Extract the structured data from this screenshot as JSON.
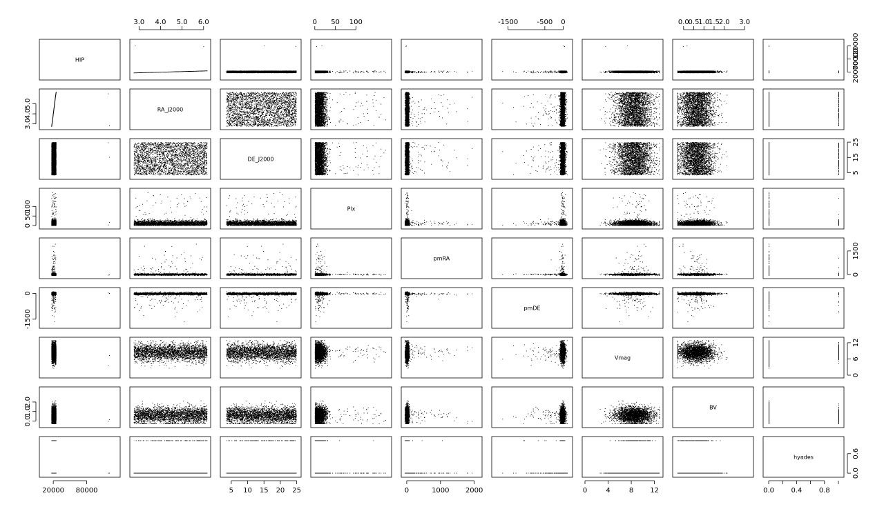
{
  "chart_data": {
    "type": "scatter",
    "title": "",
    "variables": [
      "HIP",
      "RA_J2000",
      "DE_J2000",
      "Plx",
      "pmRA",
      "pmDE",
      "Vmag",
      "BV",
      "hyades"
    ],
    "grid": false,
    "axes": {
      "HIP": {
        "range": [
          1,
          135000
        ],
        "ticks": [
          {
            "v": 20000,
            "t": "20000"
          },
          {
            "v": 80000,
            "t": "80000"
          }
        ],
        "alt_ticks": [
          {
            "v": 20000,
            "t": "20000"
          },
          {
            "v": 70000,
            "t": "70000"
          },
          {
            "v": 120000,
            "t": "120000"
          }
        ]
      },
      "RA_J2000": {
        "range": [
          2.7,
          6.2
        ],
        "ticks": [
          {
            "v": 3,
            "t": "3.0"
          },
          {
            "v": 4,
            "t": "4.0"
          },
          {
            "v": 5,
            "t": "5.0"
          },
          {
            "v": 6,
            "t": "6.0"
          }
        ]
      },
      "DE_J2000": {
        "range": [
          2.5,
          25.5
        ],
        "ticks": [
          {
            "v": 5,
            "t": "5"
          },
          {
            "v": 10,
            "t": "10"
          },
          {
            "v": 15,
            "t": "15"
          },
          {
            "v": 20,
            "t": "20"
          },
          {
            "v": 25,
            "t": "25"
          }
        ]
      },
      "Plx": {
        "range": [
          -3,
          180
        ],
        "ticks": [
          {
            "v": 0,
            "t": "0"
          },
          {
            "v": 50,
            "t": "50"
          },
          {
            "v": 100,
            "t": "100"
          }
        ]
      },
      "pmRA": {
        "range": [
          -80,
          2150
        ],
        "ticks": [
          {
            "v": 0,
            "t": "0"
          },
          {
            "v": 1000,
            "t": "1000"
          },
          {
            "v": 2000,
            "t": "2000"
          }
        ],
        "alt_ticks": [
          {
            "v": 0,
            "t": "0"
          },
          {
            "v": 1500,
            "t": "1500"
          }
        ]
      },
      "pmDE": {
        "range": [
          -1870,
          180
        ],
        "ticks": [
          {
            "v": -1500,
            "t": "-1500"
          },
          {
            "v": -500,
            "t": "-500"
          },
          {
            "v": 0,
            "t": "0"
          }
        ],
        "alt_ticks": [
          {
            "v": -1500,
            "t": "-1500"
          },
          {
            "v": 0,
            "t": "0"
          }
        ]
      },
      "Vmag": {
        "range": [
          0,
          13
        ],
        "ticks": [
          {
            "v": 0,
            "t": "0"
          },
          {
            "v": 4,
            "t": "4"
          },
          {
            "v": 8,
            "t": "8"
          },
          {
            "v": 12,
            "t": "12"
          }
        ],
        "alt_ticks": [
          {
            "v": 0,
            "t": "0"
          },
          {
            "v": 6,
            "t": "6"
          },
          {
            "v": 12,
            "t": "12"
          }
        ]
      },
      "BV": {
        "range": [
          -0.4,
          3.3
        ],
        "ticks": [
          {
            "v": 0,
            "t": "0.0"
          },
          {
            "v": 1,
            "t": "1.0"
          },
          {
            "v": 2,
            "t": "2.0"
          },
          {
            "v": 3,
            "t": "3.0"
          }
        ],
        "alt_ticks": [
          {
            "v": 0,
            "t": "0.0"
          },
          {
            "v": 1,
            "t": "1.0"
          },
          {
            "v": 2,
            "t": "2.0"
          }
        ],
        "half_ticks": [
          {
            "v": 0.5,
            "t": "0.5"
          },
          {
            "v": 1.5,
            "t": "1.5"
          }
        ]
      },
      "hyades": {
        "range": [
          -0.04,
          1.04
        ],
        "ticks": [
          {
            "v": 0,
            "t": "0.0"
          },
          {
            "v": 0.4,
            "t": "0.4"
          },
          {
            "v": 0.8,
            "t": "0.8"
          }
        ],
        "alt_ticks": [
          {
            "v": 0,
            "t": "0.0"
          },
          {
            "v": 0.6,
            "t": "0.6"
          }
        ],
        "minor": [
          0.2,
          0.6,
          1.0
        ]
      }
    },
    "distributions": {
      "n_points": 2700,
      "HIP": {
        "median": 20500,
        "spread": 2500,
        "outliers": [
          120000,
          118000
        ]
      },
      "RA_J2000": {
        "min": 2.75,
        "max": 6.15,
        "uniform": true
      },
      "DE_J2000": {
        "min": 3.5,
        "max": 24.8,
        "uniform": true
      },
      "Plx": {
        "typical": 10,
        "spread": 8,
        "max": 175
      },
      "pmRA": {
        "typical": 5,
        "spread": 25,
        "max": 2100
      },
      "pmDE": {
        "typical": -20,
        "spread": 30,
        "min": -1850
      },
      "Vmag": {
        "mean": 8.4,
        "sd": 1.6,
        "min": 0.5,
        "max": 12.8
      },
      "BV": {
        "mean": 0.6,
        "sd": 0.45,
        "min": -0.3,
        "max": 3.2
      },
      "hyades": {
        "values": [
          0,
          1
        ],
        "fraction_true": 0.04
      }
    }
  }
}
